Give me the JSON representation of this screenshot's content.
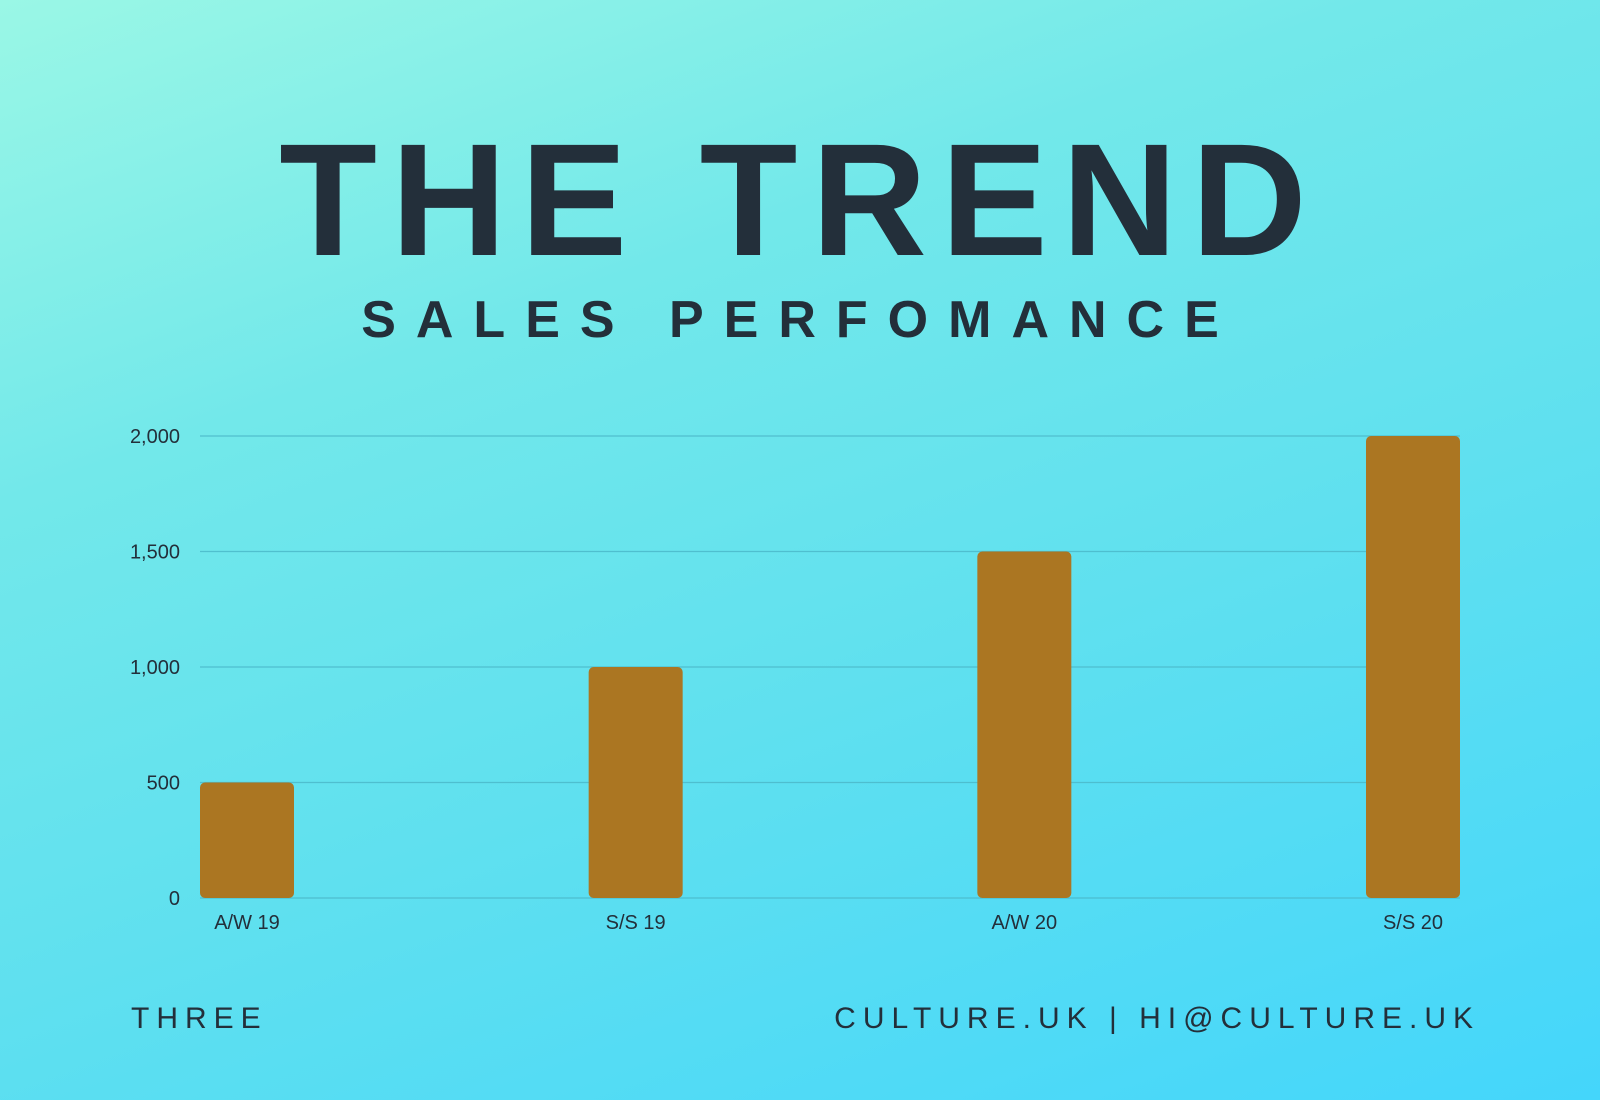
{
  "header": {
    "title": "THE TREND",
    "subtitle": "SALES PERFOMANCE"
  },
  "footer": {
    "left": "THREE",
    "right": "CULTURE.UK | HI@CULTURE.UK"
  },
  "colors": {
    "bar": "#ab7622",
    "text": "#232f3a",
    "grid": "#4bb8c9"
  },
  "chart_data": {
    "type": "bar",
    "categories": [
      "A/W 19",
      "S/S 19",
      "A/W 20",
      "S/S 20"
    ],
    "values": [
      500,
      1000,
      1500,
      2000
    ],
    "title": "",
    "xlabel": "",
    "ylabel": "",
    "ylim": [
      0,
      2000
    ],
    "yticks": [
      0,
      500,
      1000,
      1500,
      2000
    ],
    "ytick_labels": [
      "0",
      "500",
      "1,000",
      "1,500",
      "2,000"
    ],
    "grid": true,
    "legend": "none"
  }
}
